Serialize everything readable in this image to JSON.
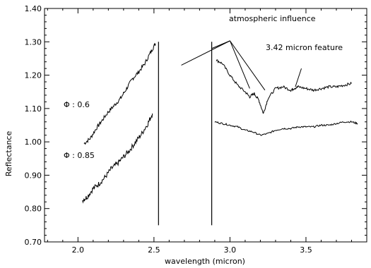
{
  "chart_data": {
    "type": "line",
    "title": "",
    "xlabel": "wavelength (micron)",
    "ylabel": "Reflectance",
    "xlim": [
      1.78,
      3.9
    ],
    "ylim": [
      0.7,
      1.4
    ],
    "xticks": [
      2.0,
      2.5,
      3.0,
      3.5
    ],
    "xtick_labels": [
      "2.0",
      "2.5",
      "3.0",
      "3.5"
    ],
    "yticks": [
      0.7,
      0.8,
      0.9,
      1.0,
      1.1,
      1.2,
      1.3,
      1.4
    ],
    "ytick_labels": [
      "0.70",
      "0.80",
      "0.90",
      "1.00",
      "1.10",
      "1.20",
      "1.30",
      "1.40"
    ],
    "grid": false,
    "series": [
      {
        "name": "",
        "x": [
          2.04,
          2.08,
          2.12,
          2.16,
          2.2,
          2.24,
          2.28,
          2.32,
          2.36,
          2.4,
          2.44,
          2.48,
          2.51
        ],
        "y": [
          0.995,
          1.01,
          1.04,
          1.065,
          1.09,
          1.11,
          1.13,
          1.16,
          1.19,
          1.21,
          1.235,
          1.27,
          1.295
        ]
      },
      {
        "name": "",
        "x": [
          2.03,
          2.06,
          2.1,
          2.14,
          2.18,
          2.22,
          2.26,
          2.3,
          2.34,
          2.38,
          2.42,
          2.46,
          2.49
        ],
        "y": [
          0.825,
          0.835,
          0.86,
          0.875,
          0.895,
          0.92,
          0.935,
          0.955,
          0.975,
          1.0,
          1.025,
          1.055,
          1.085
        ]
      },
      {
        "name": "",
        "x": [
          2.91,
          2.95,
          3.0,
          3.05,
          3.1,
          3.13,
          3.16,
          3.19,
          3.22,
          3.25,
          3.3,
          3.35,
          3.4,
          3.42,
          3.45,
          3.5,
          3.55,
          3.6,
          3.65,
          3.7,
          3.75,
          3.8
        ],
        "y": [
          1.245,
          1.235,
          1.2,
          1.17,
          1.15,
          1.135,
          1.145,
          1.125,
          1.085,
          1.13,
          1.16,
          1.165,
          1.155,
          1.16,
          1.165,
          1.16,
          1.155,
          1.16,
          1.165,
          1.165,
          1.17,
          1.175
        ]
      },
      {
        "name": "",
        "x": [
          2.9,
          2.95,
          3.0,
          3.05,
          3.1,
          3.15,
          3.2,
          3.25,
          3.3,
          3.35,
          3.4,
          3.45,
          3.5,
          3.55,
          3.6,
          3.65,
          3.7,
          3.75,
          3.8,
          3.84
        ],
        "y": [
          1.06,
          1.055,
          1.05,
          1.045,
          1.035,
          1.03,
          1.02,
          1.025,
          1.035,
          1.04,
          1.04,
          1.045,
          1.045,
          1.045,
          1.05,
          1.05,
          1.055,
          1.06,
          1.06,
          1.055
        ]
      }
    ],
    "vertical_lines": [
      {
        "x": 2.53,
        "y_from": 0.75,
        "y_to": 1.3
      },
      {
        "x": 2.88,
        "y_from": 0.75,
        "y_to": 1.3
      }
    ],
    "annotations": {
      "atmospheric": "atmospheric influence",
      "feature": "3.42 micron feature",
      "phi_06": "Φ : 0.6",
      "phi_085": "Φ : 0.85"
    },
    "pointer_lines": [
      {
        "from": [
          3.0,
          1.303
        ],
        "to": [
          2.68,
          1.23
        ]
      },
      {
        "from": [
          3.0,
          1.303
        ],
        "to": [
          2.88,
          1.28
        ]
      },
      {
        "from": [
          3.0,
          1.303
        ],
        "to": [
          3.13,
          1.16
        ]
      },
      {
        "from": [
          3.0,
          1.303
        ],
        "to": [
          3.23,
          1.155
        ]
      },
      {
        "from": [
          3.47,
          1.22
        ],
        "to": [
          3.43,
          1.165
        ]
      }
    ]
  }
}
